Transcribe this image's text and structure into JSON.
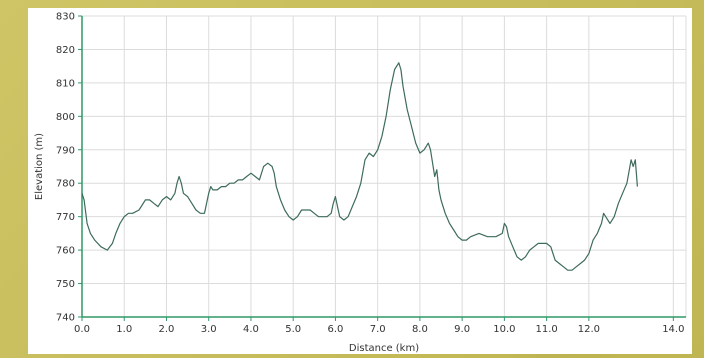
{
  "chart_data": {
    "type": "line",
    "xlabel": "Distance (km)",
    "ylabel": "Elevation (m)",
    "xlim": [
      0,
      14.3
    ],
    "ylim": [
      740,
      830
    ],
    "x_ticks": [
      0,
      1,
      2,
      3,
      4,
      5,
      6,
      7,
      8,
      9,
      10,
      11,
      12,
      14
    ],
    "x_tick_labels": [
      "0.0",
      "1.0",
      "2.0",
      "3.0",
      "4.0",
      "5.0",
      "6.0",
      "7.0",
      "8.0",
      "9.0",
      "10.0",
      "11.0",
      "12.0",
      "14.0"
    ],
    "y_ticks": [
      740,
      750,
      760,
      770,
      780,
      790,
      800,
      810,
      820,
      830
    ],
    "y_tick_labels": [
      "740",
      "750",
      "760",
      "770",
      "780",
      "790",
      "800",
      "810",
      "820",
      "830"
    ],
    "grid": true,
    "colors": {
      "line": "#3d6b5c",
      "axis": "#2e9a67",
      "grid": "#dcdcdc"
    },
    "series": [
      {
        "x": [
          0.0,
          0.05,
          0.12,
          0.2,
          0.3,
          0.45,
          0.6,
          0.72,
          0.8,
          0.9,
          1.0,
          1.1,
          1.2,
          1.35,
          1.5,
          1.6,
          1.7,
          1.8,
          1.9,
          2.0,
          2.1,
          2.2,
          2.25,
          2.3,
          2.35,
          2.4,
          2.5,
          2.6,
          2.7,
          2.8,
          2.9,
          3.0,
          3.05,
          3.1,
          3.2,
          3.3,
          3.4,
          3.5,
          3.6,
          3.7,
          3.8,
          3.9,
          4.0,
          4.1,
          4.2,
          4.3,
          4.4,
          4.5,
          4.55,
          4.6,
          4.7,
          4.8,
          4.9,
          5.0,
          5.1,
          5.2,
          5.3,
          5.4,
          5.5,
          5.6,
          5.7,
          5.8,
          5.9,
          5.95,
          6.0,
          6.05,
          6.1,
          6.2,
          6.3,
          6.4,
          6.5,
          6.6,
          6.7,
          6.8,
          6.9,
          7.0,
          7.1,
          7.2,
          7.3,
          7.4,
          7.5,
          7.55,
          7.6,
          7.7,
          7.8,
          7.9,
          8.0,
          8.1,
          8.2,
          8.25,
          8.3,
          8.35,
          8.4,
          8.45,
          8.5,
          8.6,
          8.7,
          8.8,
          8.9,
          9.0,
          9.1,
          9.2,
          9.4,
          9.6,
          9.8,
          9.95,
          10.0,
          10.05,
          10.1,
          10.2,
          10.3,
          10.4,
          10.5,
          10.6,
          10.7,
          10.8,
          10.9,
          11.0,
          11.1,
          11.2,
          11.3,
          11.4,
          11.5,
          11.6,
          11.7,
          11.8,
          11.9,
          12.0,
          12.1,
          12.2,
          12.3,
          12.35,
          12.4,
          12.5,
          12.6,
          12.7,
          12.8,
          12.9,
          13.0,
          13.05,
          13.1,
          13.15
        ],
        "y": [
          777,
          775,
          768,
          765,
          763,
          761,
          760,
          762,
          765,
          768,
          770,
          771,
          771,
          772,
          775,
          775,
          774,
          773,
          775,
          776,
          775,
          777,
          780,
          782,
          780,
          777,
          776,
          774,
          772,
          771,
          771,
          777,
          779,
          778,
          778,
          779,
          779,
          780,
          780,
          781,
          781,
          782,
          783,
          782,
          781,
          785,
          786,
          785,
          783,
          779,
          775,
          772,
          770,
          769,
          770,
          772,
          772,
          772,
          771,
          770,
          770,
          770,
          771,
          774,
          776,
          773,
          770,
          769,
          770,
          773,
          776,
          780,
          787,
          789,
          788,
          790,
          794,
          800,
          808,
          814,
          816,
          814,
          809,
          802,
          797,
          792,
          789,
          790,
          792,
          790,
          786,
          782,
          784,
          778,
          775,
          771,
          768,
          766,
          764,
          763,
          763,
          764,
          765,
          764,
          764,
          765,
          768,
          767,
          764,
          761,
          758,
          757,
          758,
          760,
          761,
          762,
          762,
          762,
          761,
          757,
          756,
          755,
          754,
          754,
          755,
          756,
          757,
          759,
          763,
          765,
          768,
          771,
          770,
          768,
          770,
          774,
          777,
          780,
          787,
          785,
          787,
          779
        ]
      }
    ]
  }
}
